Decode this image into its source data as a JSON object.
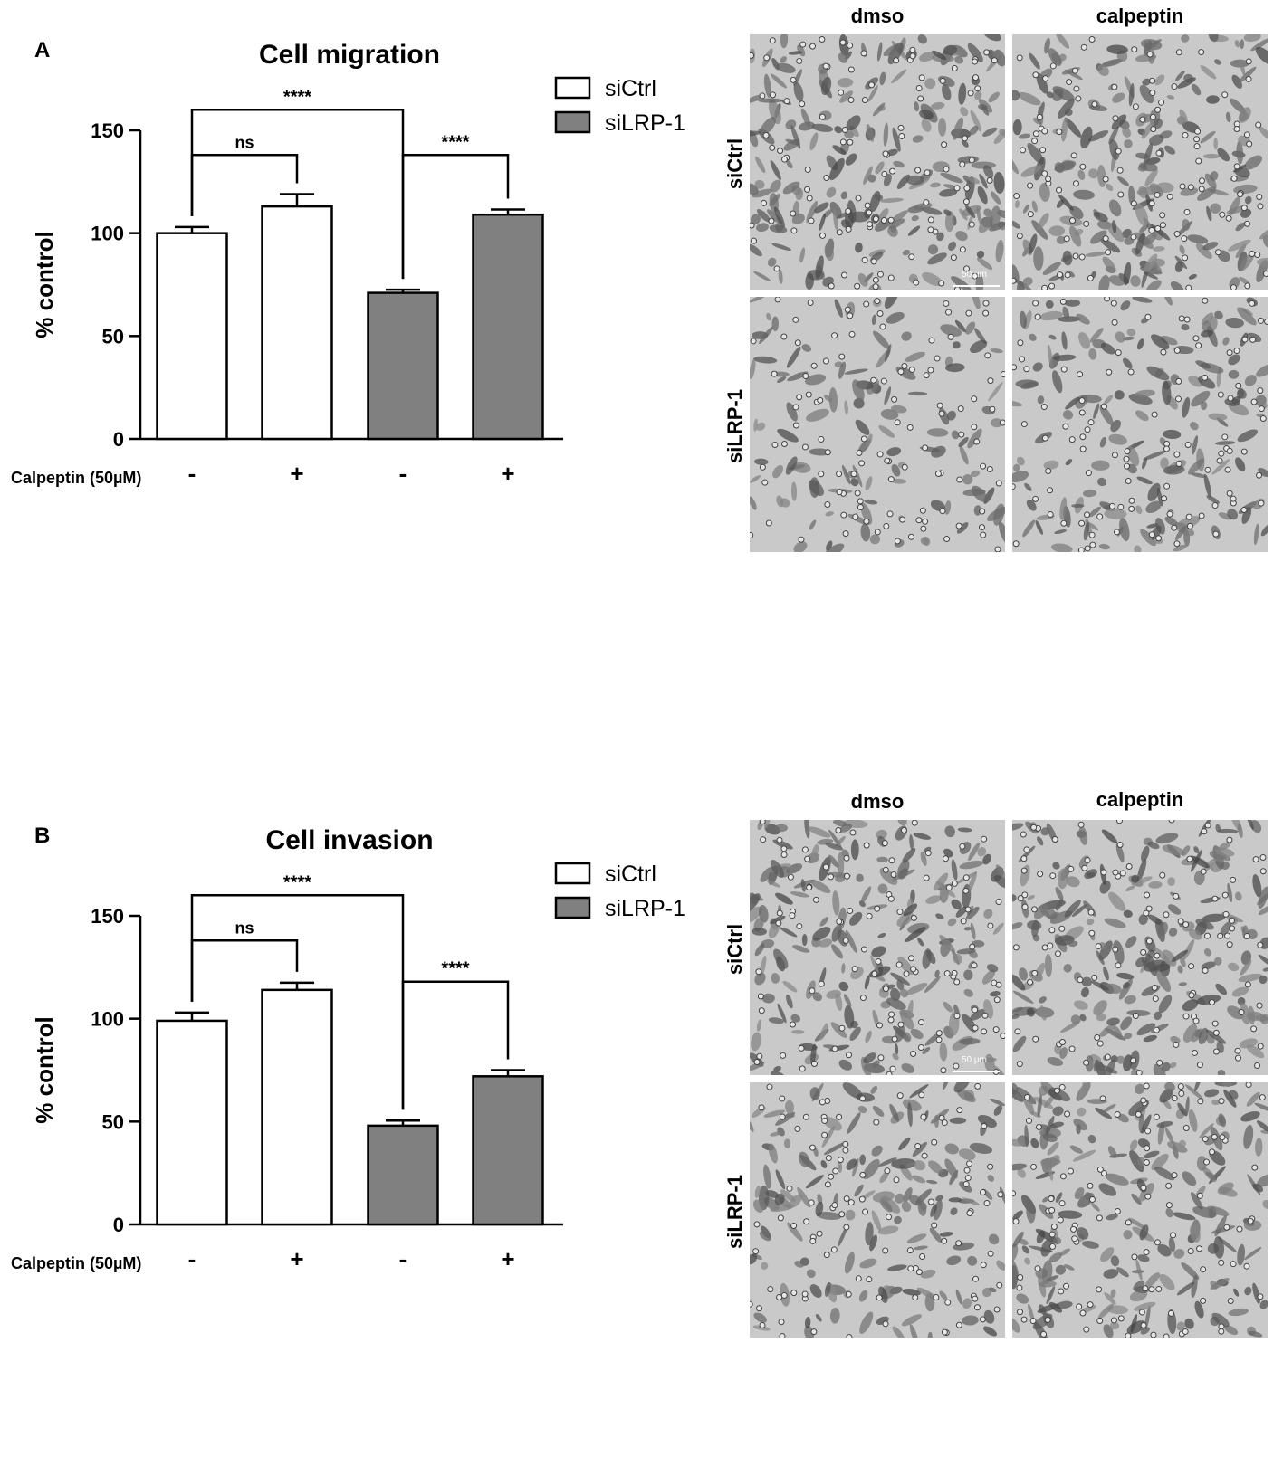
{
  "panels": [
    {
      "letter": "A",
      "micro_cols": [
        "dmso",
        "calpeptin"
      ],
      "micro_rows": [
        "siCtrl",
        "siLRP-1"
      ],
      "scalebar": "50 µm"
    },
    {
      "letter": "B",
      "micro_cols": [
        "dmso",
        "calpeptin"
      ],
      "micro_rows": [
        "siCtrl",
        "siLRP-1"
      ],
      "scalebar": "50 µm"
    }
  ],
  "chart_data": [
    {
      "type": "bar",
      "title": "Cell migration",
      "ylabel": "% control",
      "xlabel": "",
      "ylim": [
        0,
        150
      ],
      "yticks": [
        0,
        50,
        100,
        150
      ],
      "treatment_label": "Calpeptin (50µM)",
      "treatment_marks": [
        "-",
        "+",
        "-",
        "+"
      ],
      "legend": [
        {
          "name": "siCtrl",
          "color": "#ffffff"
        },
        {
          "name": "siLRP-1",
          "color": "#808080"
        }
      ],
      "legend_position": "top-right",
      "bars": [
        {
          "group": "siCtrl",
          "calpeptin": "-",
          "value": 100,
          "error": 3,
          "color": "#ffffff"
        },
        {
          "group": "siCtrl",
          "calpeptin": "+",
          "value": 113,
          "error": 6,
          "color": "#ffffff"
        },
        {
          "group": "siLRP-1",
          "calpeptin": "-",
          "value": 71,
          "error": 1.5,
          "color": "#808080"
        },
        {
          "group": "siLRP-1",
          "calpeptin": "+",
          "value": 109,
          "error": 2.5,
          "color": "#808080"
        }
      ],
      "significance": [
        {
          "from": 0,
          "to": 2,
          "label": "****",
          "level": 160
        },
        {
          "from": 0,
          "to": 1,
          "label": "ns",
          "level": 138
        },
        {
          "from": 2,
          "to": 3,
          "label": "****",
          "level": 138
        }
      ]
    },
    {
      "type": "bar",
      "title": "Cell invasion",
      "ylabel": "% control",
      "xlabel": "",
      "ylim": [
        0,
        150
      ],
      "yticks": [
        0,
        50,
        100,
        150
      ],
      "treatment_label": "Calpeptin (50µM)",
      "treatment_marks": [
        "-",
        "+",
        "-",
        "+"
      ],
      "legend": [
        {
          "name": "siCtrl",
          "color": "#ffffff"
        },
        {
          "name": "siLRP-1",
          "color": "#808080"
        }
      ],
      "legend_position": "top-right",
      "bars": [
        {
          "group": "siCtrl",
          "calpeptin": "-",
          "value": 99,
          "error": 4,
          "color": "#ffffff"
        },
        {
          "group": "siCtrl",
          "calpeptin": "+",
          "value": 114,
          "error": 3.5,
          "color": "#ffffff"
        },
        {
          "group": "siLRP-1",
          "calpeptin": "-",
          "value": 48,
          "error": 2.5,
          "color": "#808080"
        },
        {
          "group": "siLRP-1",
          "calpeptin": "+",
          "value": 72,
          "error": 3,
          "color": "#808080"
        }
      ],
      "significance": [
        {
          "from": 0,
          "to": 2,
          "label": "****",
          "level": 160
        },
        {
          "from": 0,
          "to": 1,
          "label": "ns",
          "level": 138
        },
        {
          "from": 2,
          "to": 3,
          "label": "****",
          "level": 118
        }
      ]
    }
  ]
}
